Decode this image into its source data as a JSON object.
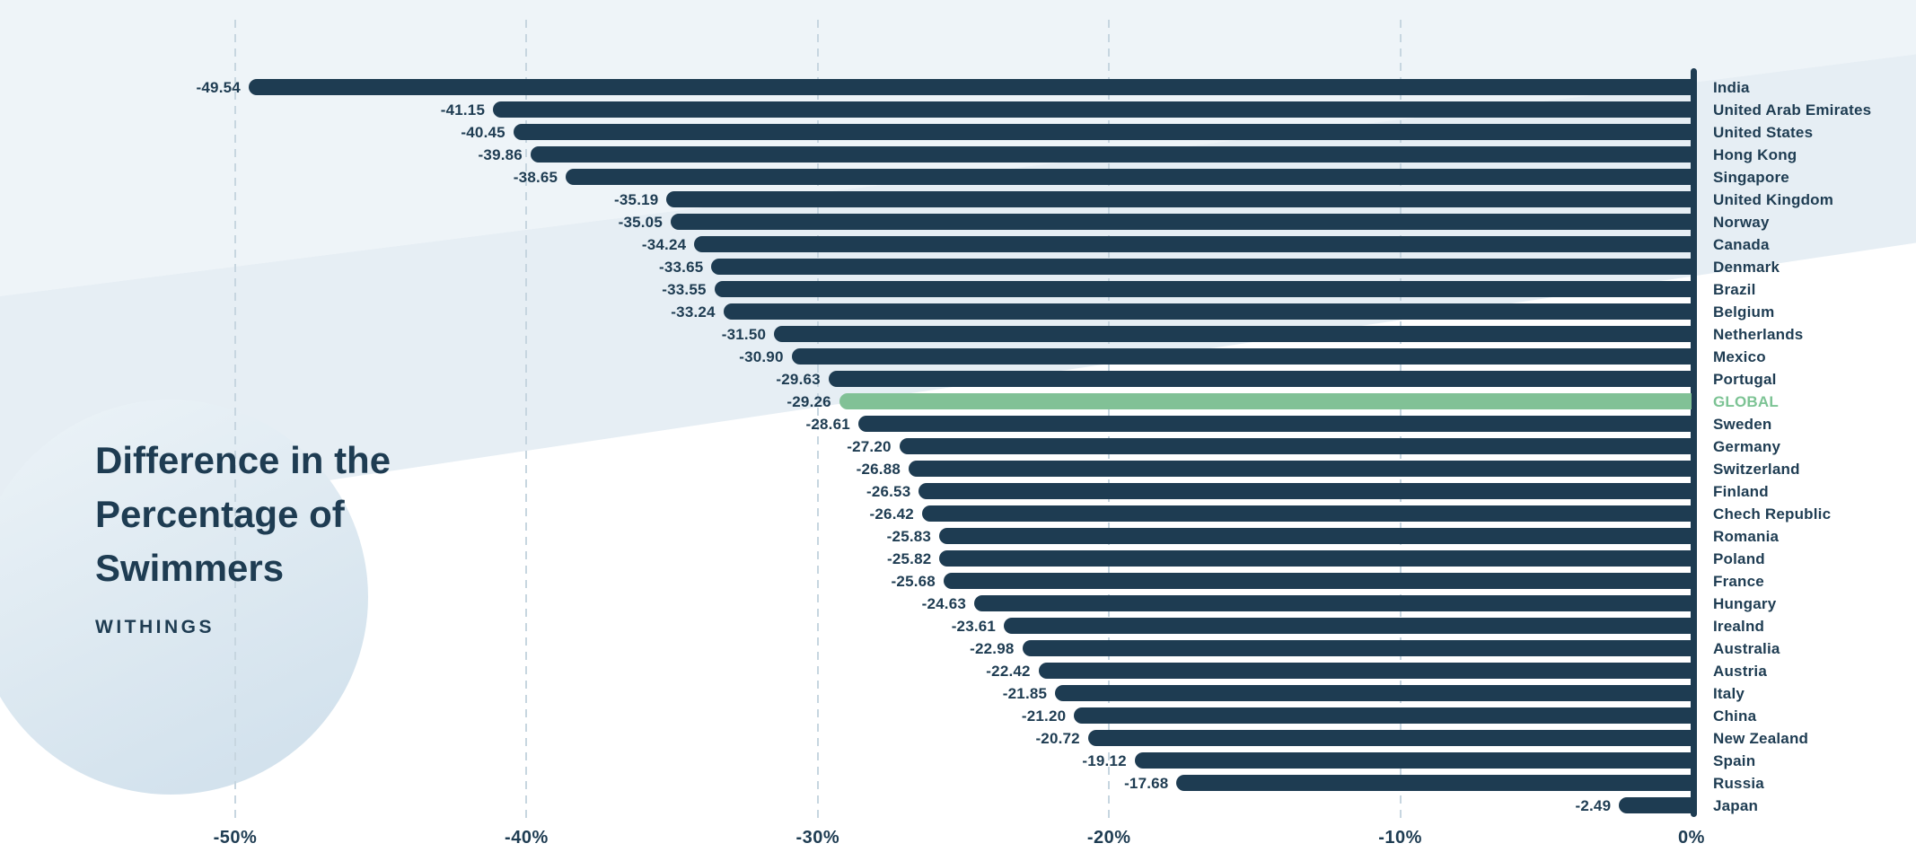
{
  "title": {
    "lines": [
      "Difference in the",
      "Percentage of",
      "Swimmers"
    ],
    "brand": "WITHINGS"
  },
  "chart_data": {
    "type": "bar",
    "orientation": "horizontal",
    "title": "Difference in the Percentage of Swimmers",
    "source": "WITHINGS",
    "xlabel": "",
    "ylabel": "",
    "unit": "%",
    "xlim": [
      -50,
      0
    ],
    "grid": true,
    "value_label_format": "two_decimals",
    "categories": [
      "India",
      "United Arab Emirates",
      "United States",
      "Hong Kong",
      "Singapore",
      "United Kingdom",
      "Norway",
      "Canada",
      "Denmark",
      "Brazil",
      "Belgium",
      "Netherlands",
      "Mexico",
      "Portugal",
      "GLOBAL",
      "Sweden",
      "Germany",
      "Switzerland",
      "Finland",
      "Chech Republic",
      "Romania",
      "Poland",
      "France",
      "Hungary",
      "Irealnd",
      "Australia",
      "Austria",
      "Italy",
      "China",
      "New Zealand",
      "Spain",
      "Russia",
      "Japan"
    ],
    "values": [
      -49.54,
      -41.15,
      -40.45,
      -39.86,
      -38.65,
      -35.19,
      -35.05,
      -34.24,
      -33.65,
      -33.55,
      -33.24,
      -31.5,
      -30.9,
      -29.63,
      -29.26,
      -28.61,
      -27.2,
      -26.88,
      -26.53,
      -26.42,
      -25.83,
      -25.82,
      -25.68,
      -24.63,
      -23.61,
      -22.98,
      -22.42,
      -21.85,
      -21.2,
      -20.72,
      -19.12,
      -17.68,
      -2.49
    ],
    "highlight_category": "GLOBAL",
    "x_ticks": [
      {
        "value": -50,
        "label": "-50%"
      },
      {
        "value": -40,
        "label": "-40%"
      },
      {
        "value": -30,
        "label": "-30%"
      },
      {
        "value": -20,
        "label": "-20%"
      },
      {
        "value": -10,
        "label": "-10%"
      },
      {
        "value": 0,
        "label": "0%"
      }
    ],
    "colors": {
      "bar": "#1e3c52",
      "highlight_bar": "#81c196",
      "highlight_label": "#7cc394",
      "gridline": "#c7d6e0"
    }
  }
}
